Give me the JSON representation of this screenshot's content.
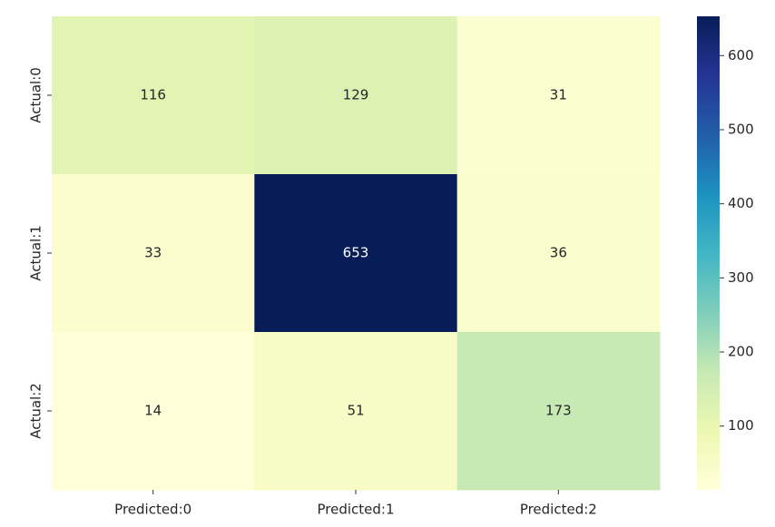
{
  "chart_data": {
    "type": "heatmap",
    "x_categories": [
      "Predicted:0",
      "Predicted:1",
      "Predicted:2"
    ],
    "y_categories": [
      "Actual:0",
      "Actual:1",
      "Actual:2"
    ],
    "values": [
      [
        116,
        129,
        31
      ],
      [
        33,
        653,
        36
      ],
      [
        14,
        51,
        173
      ]
    ],
    "vlim": [
      14,
      653
    ],
    "colorbar_ticks": [
      100,
      200,
      300,
      400,
      500,
      600
    ],
    "colormap": [
      "#ffffd9",
      "#edf8b1",
      "#c7e9b4",
      "#7fcdbb",
      "#41b6c4",
      "#1d91c0",
      "#225ea8",
      "#253494",
      "#081d58"
    ]
  }
}
